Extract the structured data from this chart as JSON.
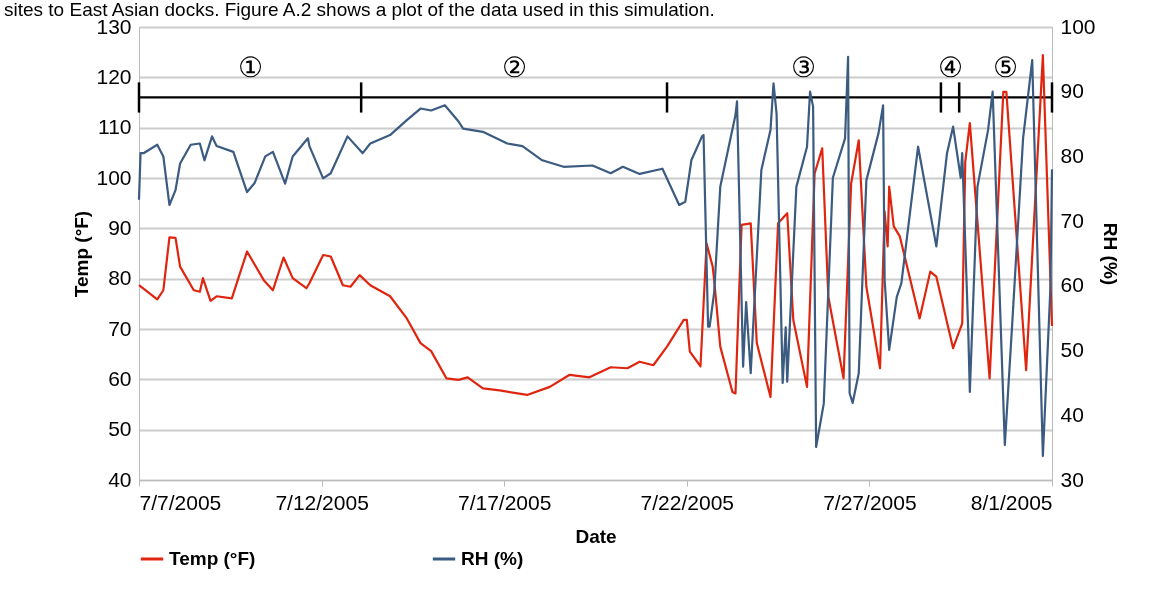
{
  "chart_data": {
    "type": "line",
    "xlabel": "Date",
    "ylabel": "Temp (°F)",
    "y2label": "RH (%)",
    "annotations": [
      "sites to East Asian docks. Figure A.2 shows a plot of the data used in this simulation.",
      "①",
      "②",
      "③",
      "④",
      "⑤"
    ],
    "xlim": [
      "2005-07-07T00:00",
      "2005-08-01T00:00"
    ],
    "xticks": [
      {
        "value": "2005-07-07T00:00",
        "label": "7/7/2005"
      },
      {
        "value": "2005-07-12T00:00",
        "label": "7/12/2005"
      },
      {
        "value": "2005-07-17T00:00",
        "label": "7/17/2005"
      },
      {
        "value": "2005-07-22T00:00",
        "label": "7/22/2005"
      },
      {
        "value": "2005-07-27T00:00",
        "label": "7/27/2005"
      },
      {
        "value": "2005-08-01T00:00",
        "label": "8/1/2005"
      }
    ],
    "ylim": [
      40,
      130
    ],
    "yticks": [
      40,
      50,
      60,
      70,
      80,
      90,
      100,
      110,
      120,
      130
    ],
    "y2lim": [
      30,
      100
    ],
    "y2ticks": [
      30,
      40,
      50,
      60,
      70,
      80,
      90,
      100
    ],
    "grid": "y",
    "legend": "bottom",
    "series": [
      {
        "color": "#000000",
        "axis": "y",
        "x": [
          "2005-07-07T00:00",
          "2005-07-13T02:00",
          "2005-07-21T11:00",
          "2005-07-28T23:00",
          "2005-07-29T11:00",
          "2005-08-01T00:00"
        ],
        "values": [
          116,
          116,
          116,
          116,
          116,
          116
        ],
        "errors": [
          3,
          3,
          3,
          3,
          3,
          3
        ]
      },
      {
        "name": "Temp (°F)",
        "color": "#e0250f",
        "axis": "y",
        "x": [
          "2005-07-07T00:00",
          "2005-07-07T12:00",
          "2005-07-07T16:00",
          "2005-07-07T20:00",
          "2005-07-08T00:00",
          "2005-07-08T03:00",
          "2005-07-08T12:00",
          "2005-07-08T16:00",
          "2005-07-08T18:00",
          "2005-07-08T23:00",
          "2005-07-09T03:00",
          "2005-07-09T13:00",
          "2005-07-09T23:00",
          "2005-07-10T10:00",
          "2005-07-10T16:00",
          "2005-07-10T23:00",
          "2005-07-11T05:00",
          "2005-07-11T14:00",
          "2005-07-11T16:00",
          "2005-07-12T01:00",
          "2005-07-12T06:00",
          "2005-07-12T14:00",
          "2005-07-12T19:00",
          "2005-07-13T01:00",
          "2005-07-13T08:00",
          "2005-07-13T21:00",
          "2005-07-14T08:00",
          "2005-07-14T17:00",
          "2005-07-15T00:00",
          "2005-07-15T10:00",
          "2005-07-15T18:00",
          "2005-07-16T00:00",
          "2005-07-16T10:00",
          "2005-07-16T21:00",
          "2005-07-17T15:00",
          "2005-07-18T06:00",
          "2005-07-18T19:00",
          "2005-07-19T08:00",
          "2005-07-19T22:00",
          "2005-07-20T09:00",
          "2005-07-20T17:00",
          "2005-07-21T02:00",
          "2005-07-21T11:00",
          "2005-07-21T22:00",
          "2005-07-22T00:00",
          "2005-07-22T02:00",
          "2005-07-22T09:00",
          "2005-07-22T13:00",
          "2005-07-22T17:00",
          "2005-07-22T18:00",
          "2005-07-22T22:00",
          "2005-07-23T06:00",
          "2005-07-23T08:00",
          "2005-07-23T12:00",
          "2005-07-23T18:00",
          "2005-07-23T22:00",
          "2005-07-24T07:00",
          "2005-07-24T12:00",
          "2005-07-24T18:00",
          "2005-07-24T22:00",
          "2005-07-25T07:00",
          "2005-07-25T12:00",
          "2005-07-25T17:00",
          "2005-07-25T21:00",
          "2005-07-26T07:00",
          "2005-07-26T12:00",
          "2005-07-26T17:00",
          "2005-07-26T22:00",
          "2005-07-27T07:00",
          "2005-07-27T10:00",
          "2005-07-27T12:00",
          "2005-07-27T13:00",
          "2005-07-27T16:00",
          "2005-07-27T20:00",
          "2005-07-28T09:00",
          "2005-07-28T16:00",
          "2005-07-28T20:00",
          "2005-07-29T07:00",
          "2005-07-29T13:00",
          "2005-07-29T15:00",
          "2005-07-29T18:00",
          "2005-07-30T07:00",
          "2005-07-30T16:00",
          "2005-07-30T18:00",
          "2005-07-31T07:00",
          "2005-07-31T18:00",
          "2005-08-01T00:00"
        ],
        "values": [
          78.7,
          75.9,
          77.7,
          88.2,
          88.1,
          82.4,
          77.7,
          77.4,
          80.1,
          75.6,
          76.5,
          76.1,
          85.4,
          79.7,
          77.7,
          84.2,
          80.1,
          78.1,
          79.1,
          84.7,
          84.4,
          78.7,
          78.4,
          80.7,
          78.7,
          76.5,
          72.1,
          67.2,
          65.6,
          60.2,
          59.9,
          60.4,
          58.2,
          57.8,
          56.9,
          58.5,
          60.9,
          60.4,
          62.4,
          62.2,
          63.5,
          62.8,
          66.5,
          71.8,
          71.8,
          65.5,
          62.6,
          87.0,
          82.4,
          79.7,
          66.5,
          57.5,
          57.2,
          90.7,
          91.0,
          67.2,
          56.5,
          91.0,
          93.0,
          71.8,
          58.5,
          100.9,
          105.9,
          76.4,
          60.2,
          98.9,
          107.5,
          78.4,
          62.2,
          93.3,
          86.4,
          98.3,
          90.4,
          88.4,
          72.1,
          81.4,
          80.4,
          66.2,
          71.1,
          103.2,
          110.9,
          60.2,
          117.1,
          117.1,
          61.8,
          124.4,
          70.6
        ]
      },
      {
        "name": "RH (%)",
        "color": "#3b5b80",
        "axis": "y2",
        "x": [
          "2005-07-07T00:00",
          "2005-07-07T01:00",
          "2005-07-07T03:00",
          "2005-07-07T12:00",
          "2005-07-07T16:00",
          "2005-07-07T20:00",
          "2005-07-08T00:00",
          "2005-07-08T03:00",
          "2005-07-08T10:00",
          "2005-07-08T16:00",
          "2005-07-08T19:00",
          "2005-07-09T00:00",
          "2005-07-09T03:00",
          "2005-07-09T14:00",
          "2005-07-09T23:00",
          "2005-07-10T04:00",
          "2005-07-10T11:00",
          "2005-07-10T16:00",
          "2005-07-10T19:00",
          "2005-07-11T00:00",
          "2005-07-11T05:00",
          "2005-07-11T15:00",
          "2005-07-11T16:00",
          "2005-07-12T01:00",
          "2005-07-12T06:00",
          "2005-07-12T17:00",
          "2005-07-13T03:00",
          "2005-07-13T08:00",
          "2005-07-13T21:00",
          "2005-07-14T08:00",
          "2005-07-14T17:00",
          "2005-07-15T00:00",
          "2005-07-15T09:00",
          "2005-07-15T18:00",
          "2005-07-15T21:00",
          "2005-07-16T10:00",
          "2005-07-17T02:00",
          "2005-07-17T12:00",
          "2005-07-18T01:00",
          "2005-07-18T15:00",
          "2005-07-19T10:00",
          "2005-07-19T22:00",
          "2005-07-20T06:00",
          "2005-07-20T17:00",
          "2005-07-21T08:00",
          "2005-07-21T19:00",
          "2005-07-21T23:00",
          "2005-07-22T03:00",
          "2005-07-22T10:00",
          "2005-07-22T11:00",
          "2005-07-22T14:00",
          "2005-07-22T15:00",
          "2005-07-22T18:00",
          "2005-07-22T22:00",
          "2005-07-23T04:00",
          "2005-07-23T08:00",
          "2005-07-23T09:00",
          "2005-07-23T13:00",
          "2005-07-23T15:00",
          "2005-07-23T18:00",
          "2005-07-24T01:00",
          "2005-07-24T07:00",
          "2005-07-24T09:00",
          "2005-07-24T11:00",
          "2005-07-24T15:00",
          "2005-07-24T17:00",
          "2005-07-24T18:00",
          "2005-07-25T00:00",
          "2005-07-25T07:00",
          "2005-07-25T09:00",
          "2005-07-25T11:00",
          "2005-07-25T13:00",
          "2005-07-25T18:00",
          "2005-07-26T00:00",
          "2005-07-26T08:00",
          "2005-07-26T10:00",
          "2005-07-26T11:00",
          "2005-07-26T13:00",
          "2005-07-26T17:00",
          "2005-07-26T22:00",
          "2005-07-27T06:00",
          "2005-07-27T09:00",
          "2005-07-27T10:00",
          "2005-07-27T13:00",
          "2005-07-27T18:00",
          "2005-07-27T21:00",
          "2005-07-28T08:00",
          "2005-07-28T20:00",
          "2005-07-29T03:00",
          "2005-07-29T07:00",
          "2005-07-29T12:00",
          "2005-07-29T13:00",
          "2005-07-29T17:00",
          "2005-07-29T18:00",
          "2005-07-29T23:00",
          "2005-07-30T06:00",
          "2005-07-30T09:00",
          "2005-07-30T17:00",
          "2005-07-30T22:00",
          "2005-07-31T05:00",
          "2005-07-31T11:00",
          "2005-07-31T18:00",
          "2005-07-31T23:00",
          "2005-08-01T00:00"
        ],
        "values": [
          73.3,
          80.5,
          80.5,
          81.8,
          80.0,
          72.5,
          74.8,
          78.9,
          81.8,
          82.0,
          79.4,
          83.1,
          81.6,
          80.7,
          74.5,
          75.9,
          80.0,
          80.7,
          78.9,
          75.8,
          80.0,
          82.8,
          81.6,
          76.6,
          77.4,
          83.1,
          80.5,
          82.0,
          83.3,
          85.6,
          87.4,
          87.1,
          87.9,
          85.4,
          84.3,
          83.8,
          82.0,
          81.6,
          79.4,
          78.4,
          78.6,
          77.4,
          78.4,
          77.3,
          78.1,
          72.5,
          73.0,
          79.4,
          83.1,
          83.3,
          53.7,
          53.7,
          59.0,
          75.3,
          82.0,
          86.4,
          88.5,
          47.5,
          57.5,
          46.5,
          77.9,
          84.1,
          91.3,
          86.6,
          45.0,
          53.6,
          45.2,
          75.3,
          81.5,
          90.0,
          87.7,
          35.1,
          41.8,
          76.7,
          82.8,
          95.4,
          43.4,
          41.9,
          46.5,
          76.3,
          83.6,
          87.9,
          60.9,
          50.1,
          58.3,
          60.4,
          81.5,
          66.1,
          80.5,
          84.6,
          76.7,
          80.5,
          52.7,
          43.6,
          75.3,
          84.1,
          90.0,
          35.4,
          54.7,
          82.8,
          94.9,
          33.7,
          59.9,
          78.0
        ]
      }
    ]
  }
}
